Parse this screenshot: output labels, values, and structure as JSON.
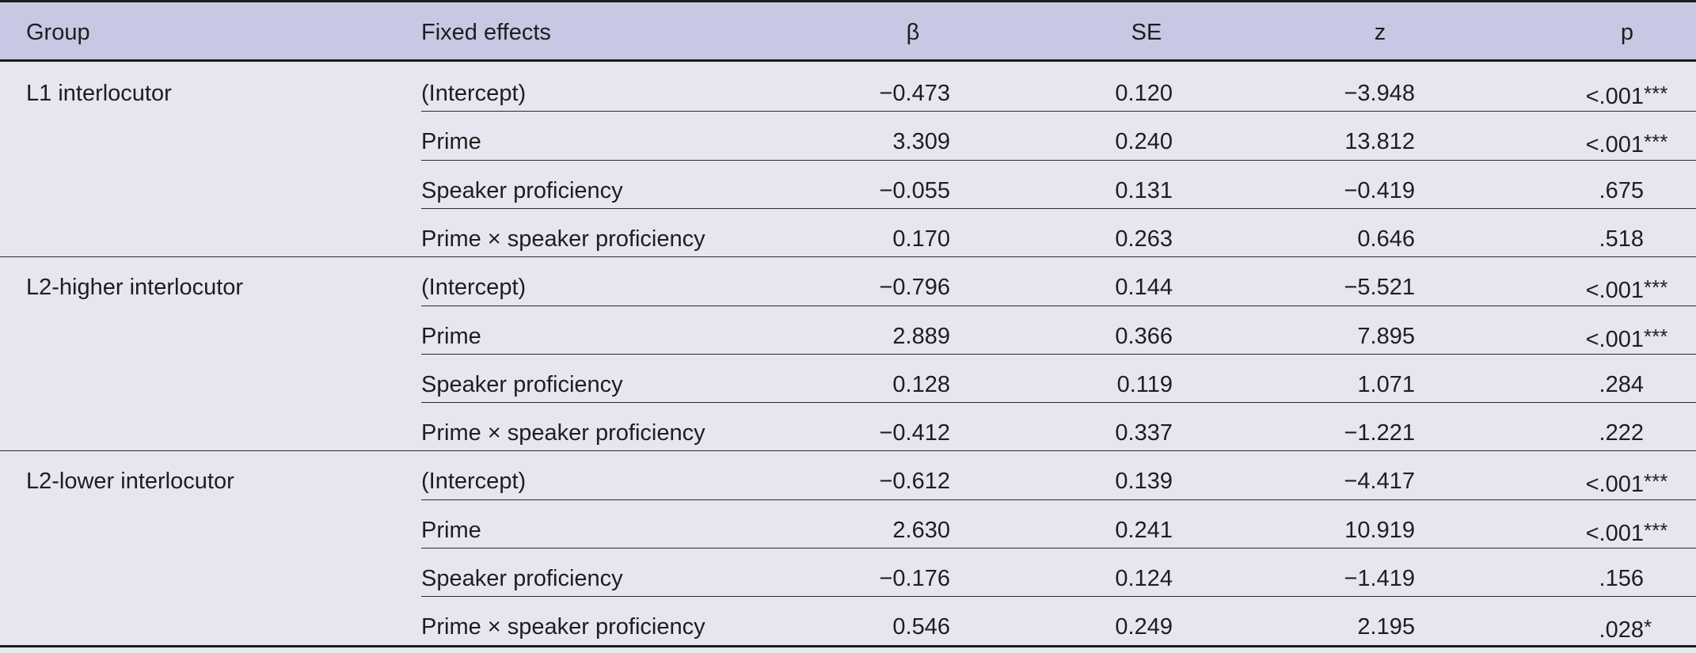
{
  "headers": {
    "group": "Group",
    "fixed_effects": "Fixed effects",
    "beta": "β",
    "se": "SE",
    "z": "z",
    "p": "p"
  },
  "groups": [
    {
      "name": "L1 interlocutor",
      "rows": [
        {
          "effect": "(Intercept)",
          "beta": "−0.473",
          "se": "0.120",
          "z": "−3.948",
          "p": "<.001",
          "sig": "***"
        },
        {
          "effect": "Prime",
          "beta": "3.309",
          "se": "0.240",
          "z": "13.812",
          "p": "<.001",
          "sig": "***"
        },
        {
          "effect": "Speaker proficiency",
          "beta": "−0.055",
          "se": "0.131",
          "z": "−0.419",
          "p": ".675",
          "sig": ""
        },
        {
          "effect": "Prime × speaker proficiency",
          "beta": "0.170",
          "se": "0.263",
          "z": "0.646",
          "p": ".518",
          "sig": ""
        }
      ]
    },
    {
      "name": "L2-higher interlocutor",
      "rows": [
        {
          "effect": "(Intercept)",
          "beta": "−0.796",
          "se": "0.144",
          "z": "−5.521",
          "p": "<.001",
          "sig": "***"
        },
        {
          "effect": "Prime",
          "beta": "2.889",
          "se": "0.366",
          "z": "7.895",
          "p": "<.001",
          "sig": "***"
        },
        {
          "effect": "Speaker proficiency",
          "beta": "0.128",
          "se": "0.119",
          "z": "1.071",
          "p": ".284",
          "sig": ""
        },
        {
          "effect": "Prime × speaker proficiency",
          "beta": "−0.412",
          "se": "0.337",
          "z": "−1.221",
          "p": ".222",
          "sig": ""
        }
      ]
    },
    {
      "name": "L2-lower interlocutor",
      "rows": [
        {
          "effect": "(Intercept)",
          "beta": "−0.612",
          "se": "0.139",
          "z": "−4.417",
          "p": "<.001",
          "sig": "***"
        },
        {
          "effect": "Prime",
          "beta": "2.630",
          "se": "0.241",
          "z": "10.919",
          "p": "<.001",
          "sig": "***"
        },
        {
          "effect": "Speaker proficiency",
          "beta": "−0.176",
          "se": "0.124",
          "z": "−1.419",
          "p": ".156",
          "sig": ""
        },
        {
          "effect": "Prime × speaker proficiency",
          "beta": "0.546",
          "se": "0.249",
          "z": "2.195",
          "p": ".028",
          "sig": "*"
        }
      ]
    }
  ]
}
